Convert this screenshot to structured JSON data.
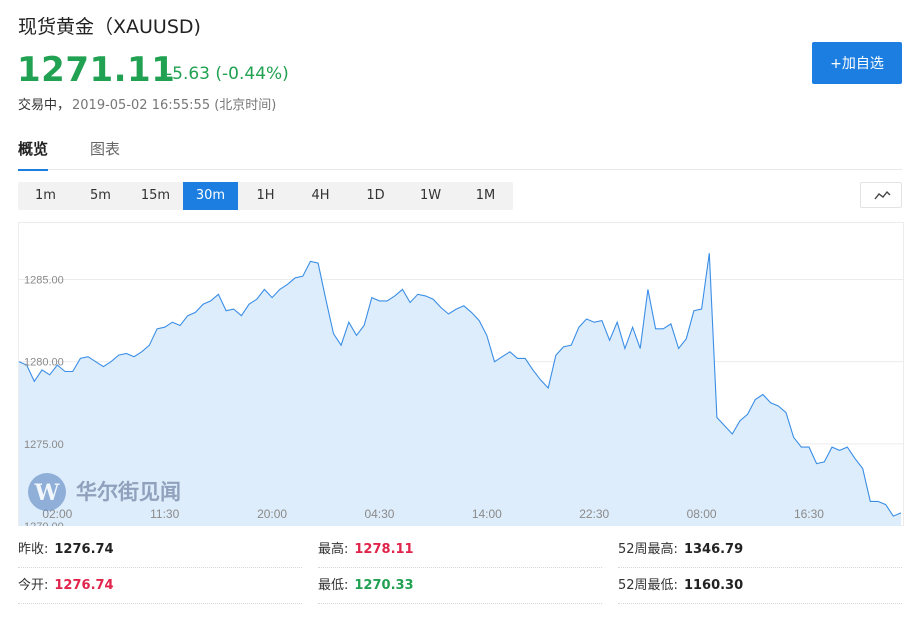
{
  "quote": {
    "title": "现货黄金（XAUUSD)",
    "price": "1271.11",
    "change": "-5.63 (-0.44%)",
    "status_label": "交易中，",
    "timestamp": "2019-05-02 16:55:55 (北京时间)"
  },
  "actions": {
    "add_watchlist": "+加自选"
  },
  "tabs": [
    {
      "label": "概览",
      "active": true
    },
    {
      "label": "图表",
      "active": false
    }
  ],
  "periods": [
    {
      "label": "1m"
    },
    {
      "label": "5m"
    },
    {
      "label": "15m"
    },
    {
      "label": "30m",
      "active": true
    },
    {
      "label": "1H"
    },
    {
      "label": "4H"
    },
    {
      "label": "1D"
    },
    {
      "label": "1W"
    },
    {
      "label": "1M"
    }
  ],
  "chart_type_icon": "line-chart-icon",
  "watermark": {
    "text": "华尔街见闻",
    "logo": "W"
  },
  "colors": {
    "accent": "#1c7ee0",
    "up": "#e0244b",
    "down": "#21a152",
    "line": "#3a8ee6",
    "fill": "#dcecfb"
  },
  "chart_data": {
    "type": "area",
    "ylim": [
      1270,
      1288.5
    ],
    "y_ticks": [
      "1285.00",
      "1280.00",
      "1275.00",
      "1270.00"
    ],
    "y_tick_values": [
      1285,
      1280,
      1275,
      1270
    ],
    "x_ticks": [
      "02:00",
      "11:30",
      "20:00",
      "04:30",
      "14:00",
      "22:30",
      "08:00",
      "16:30"
    ],
    "x_tick_index": [
      5,
      19,
      33,
      47,
      61,
      75,
      89,
      103
    ],
    "grid": true,
    "values": [
      1280.0,
      1279.8,
      1278.8,
      1279.5,
      1279.2,
      1279.8,
      1279.4,
      1279.4,
      1280.2,
      1280.3,
      1280.0,
      1279.7,
      1280.0,
      1280.4,
      1280.5,
      1280.3,
      1280.6,
      1281.0,
      1282.0,
      1282.1,
      1282.4,
      1282.2,
      1282.8,
      1283.0,
      1283.5,
      1283.7,
      1284.1,
      1283.1,
      1283.2,
      1282.8,
      1283.5,
      1283.8,
      1284.4,
      1283.9,
      1284.4,
      1284.7,
      1285.1,
      1285.2,
      1286.1,
      1286.0,
      1283.8,
      1281.7,
      1281.0,
      1282.4,
      1281.6,
      1282.2,
      1283.9,
      1283.7,
      1283.7,
      1284.0,
      1284.4,
      1283.6,
      1284.1,
      1284.0,
      1283.8,
      1283.3,
      1282.9,
      1283.2,
      1283.4,
      1283.0,
      1282.5,
      1281.6,
      1280.0,
      1280.3,
      1280.6,
      1280.2,
      1280.2,
      1279.5,
      1278.9,
      1278.4,
      1280.4,
      1280.9,
      1281.0,
      1282.1,
      1282.6,
      1282.4,
      1282.5,
      1281.3,
      1282.4,
      1280.8,
      1282.1,
      1280.8,
      1284.4,
      1282.0,
      1282.0,
      1282.3,
      1280.8,
      1281.4,
      1283.1,
      1283.2,
      1286.6,
      1276.6,
      1276.1,
      1275.6,
      1276.4,
      1276.8,
      1277.7,
      1278.0,
      1277.5,
      1277.3,
      1276.9,
      1275.4,
      1274.8,
      1274.8,
      1273.8,
      1273.9,
      1274.8,
      1274.6,
      1274.8,
      1274.1,
      1273.5,
      1271.5,
      1271.5,
      1271.3,
      1270.6,
      1270.8
    ]
  },
  "stats": [
    {
      "label": "昨收:",
      "value": "1276.74",
      "tone": "dark"
    },
    {
      "label": "最高:",
      "value": "1278.11",
      "tone": "red"
    },
    {
      "label": "52周最高:",
      "value": "1346.79",
      "tone": "dark"
    },
    {
      "label": "今开:",
      "value": "1276.74",
      "tone": "red"
    },
    {
      "label": "最低:",
      "value": "1270.33",
      "tone": "green"
    },
    {
      "label": "52周最低:",
      "value": "1160.30",
      "tone": "dark"
    }
  ]
}
